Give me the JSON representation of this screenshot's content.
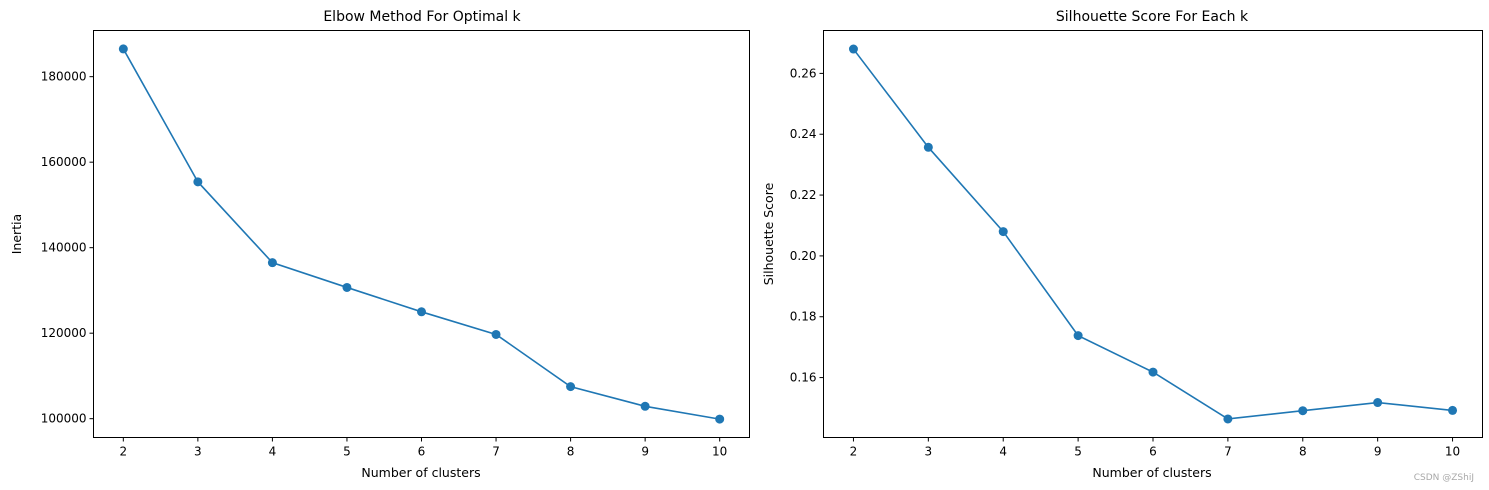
{
  "chart_data": [
    {
      "type": "line",
      "title": "Elbow Method For Optimal k",
      "xlabel": "Number of clusters",
      "ylabel": "Inertia",
      "x": [
        2,
        3,
        4,
        5,
        6,
        7,
        8,
        9,
        10
      ],
      "series": [
        {
          "values": [
            186500,
            155400,
            136500,
            130700,
            125000,
            119700,
            107500,
            102900,
            99900
          ],
          "color": "#1f77b4",
          "marker": "circle"
        }
      ],
      "xticks": [
        2,
        3,
        4,
        5,
        6,
        7,
        8,
        9,
        10
      ],
      "yticks": [
        100000,
        120000,
        140000,
        160000,
        180000
      ],
      "xlim": [
        1.6,
        10.4
      ],
      "ylim": [
        95600,
        190800
      ],
      "grid": false
    },
    {
      "type": "line",
      "title": "Silhouette Score For Each k",
      "xlabel": "Number of clusters",
      "ylabel": "Silhouette Score",
      "x": [
        2,
        3,
        4,
        5,
        6,
        7,
        8,
        9,
        10
      ],
      "series": [
        {
          "values": [
            0.268,
            0.2357,
            0.208,
            0.1738,
            0.1618,
            0.1464,
            0.1491,
            0.1518,
            0.1492
          ],
          "color": "#1f77b4",
          "marker": "circle"
        }
      ],
      "xticks": [
        2,
        3,
        4,
        5,
        6,
        7,
        8,
        9,
        10
      ],
      "yticks": [
        0.16,
        0.18,
        0.2,
        0.22,
        0.24,
        0.26
      ],
      "xlim": [
        1.6,
        10.4
      ],
      "ylim": [
        0.1403,
        0.2741
      ],
      "grid": false
    }
  ],
  "watermark": "CSDN @ZShiJ"
}
